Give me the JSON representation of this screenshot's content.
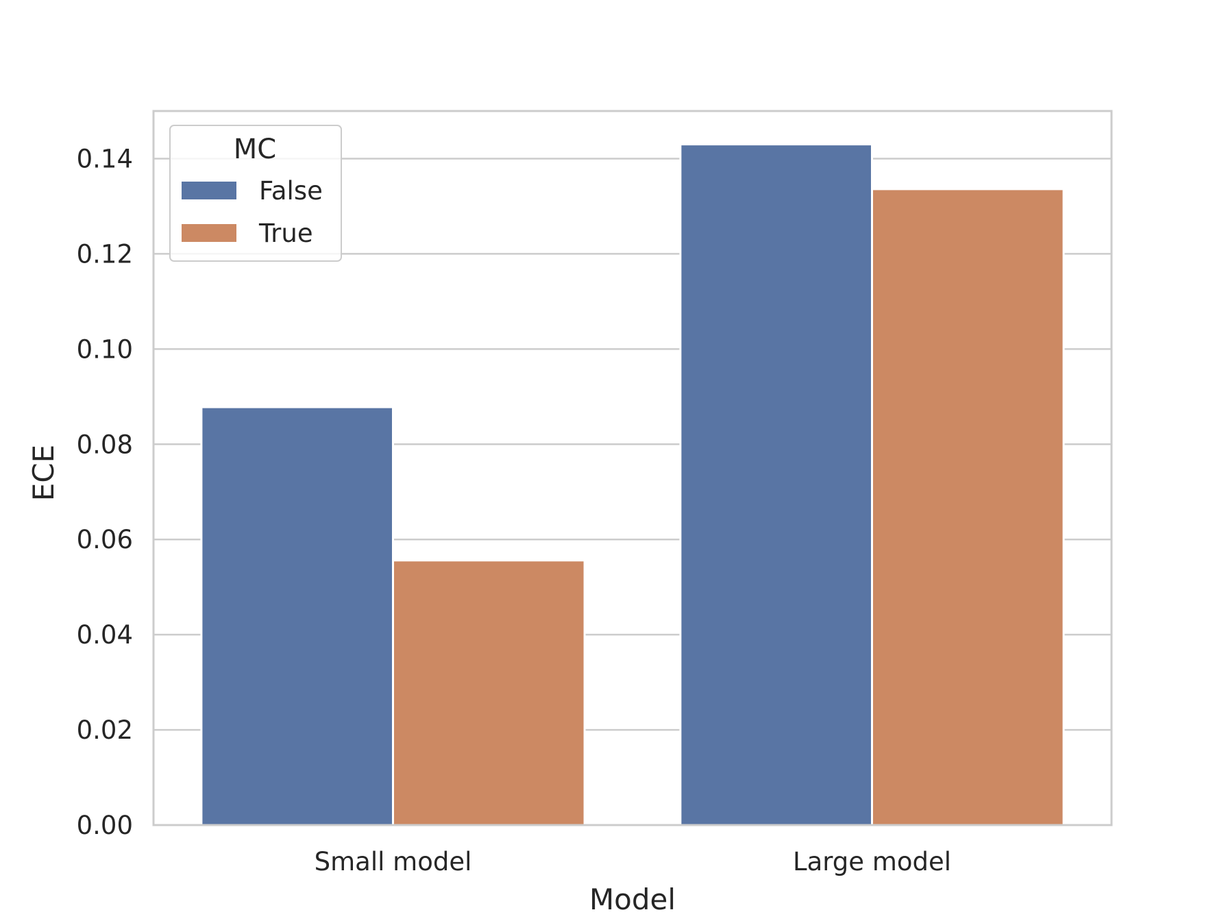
{
  "chart_data": {
    "type": "bar",
    "title": "",
    "xlabel": "Model",
    "ylabel": "ECE",
    "categories": [
      "Small model",
      "Large model"
    ],
    "series": [
      {
        "name": "False",
        "color": "#5975a4",
        "values": [
          0.0878,
          0.143
        ]
      },
      {
        "name": "True",
        "color": "#cc8963",
        "values": [
          0.0556,
          0.1336
        ]
      }
    ],
    "ylim": [
      0,
      0.15
    ],
    "yticks": [
      0.0,
      0.02,
      0.04,
      0.06,
      0.08,
      0.1,
      0.12,
      0.14
    ],
    "ytick_labels": [
      "0.00",
      "0.02",
      "0.04",
      "0.06",
      "0.08",
      "0.10",
      "0.12",
      "0.14"
    ],
    "grid": true,
    "legend": {
      "title": "MC",
      "placement": "top-left"
    },
    "colors": {
      "grid": "#cccccc",
      "frame": "#cccccc",
      "text": "#262626"
    }
  }
}
